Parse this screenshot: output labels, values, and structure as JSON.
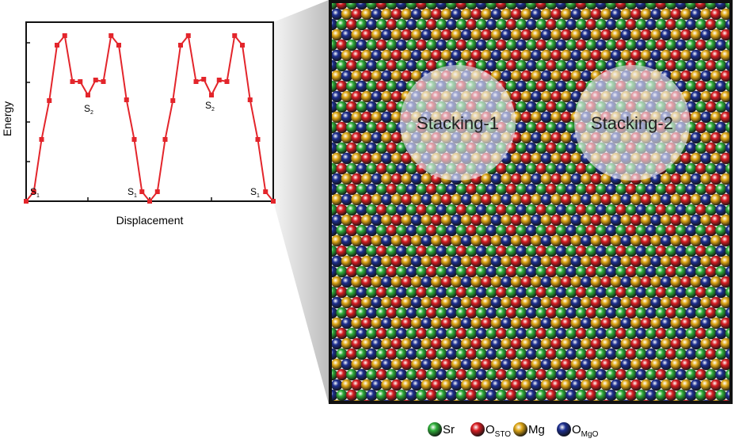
{
  "chart_data": {
    "type": "line",
    "xlabel": "Displacement",
    "ylabel": "Energy",
    "x": [
      0,
      0.03125,
      0.0625,
      0.09375,
      0.125,
      0.15625,
      0.1875,
      0.21875,
      0.25,
      0.28125,
      0.3125,
      0.34375,
      0.375,
      0.40625,
      0.4375,
      0.46875,
      0.5,
      0.53125,
      0.5625,
      0.59375,
      0.625,
      0.65625,
      0.6875,
      0.71875,
      0.75,
      0.78125,
      0.8125,
      0.84375,
      0.875,
      0.90625,
      0.9375,
      0.96875,
      1
    ],
    "series": [
      {
        "color": "#e3252b",
        "values": [
          0,
          0.24,
          1.56,
          2.54,
          3.94,
          4.18,
          3.02,
          3.02,
          2.68,
          3.06,
          3.02,
          4.18,
          3.94,
          2.56,
          1.56,
          0.24,
          0,
          0.24,
          1.56,
          2.54,
          3.94,
          4.18,
          3.02,
          3.08,
          2.68,
          3.06,
          3.02,
          4.18,
          3.94,
          2.56,
          1.56,
          0.24,
          0
        ]
      }
    ],
    "xlim": [
      0,
      1
    ],
    "xticks": [
      0.25,
      0.5,
      0.75
    ],
    "ylim": [
      0,
      4.52
    ],
    "yticks": [
      1,
      2,
      3,
      4
    ],
    "annotations": [
      {
        "text": "S",
        "sub": "1"
      },
      {
        "text": "S",
        "sub": "2"
      },
      {
        "text": "S",
        "sub": "1"
      },
      {
        "text": "S",
        "sub": "2"
      },
      {
        "text": "S",
        "sub": "1"
      }
    ]
  },
  "image": {
    "regions": [
      "Stacking-1",
      "Stacking-2"
    ],
    "legend": [
      {
        "label": "Sr",
        "color": "#2fae3a"
      },
      {
        "label": "O",
        "sub": "STO",
        "color": "#d81e23"
      },
      {
        "label": "Mg",
        "color": "#e0a816"
      },
      {
        "label": "O",
        "sub": "MgO",
        "color": "#1d2f8f"
      }
    ]
  }
}
